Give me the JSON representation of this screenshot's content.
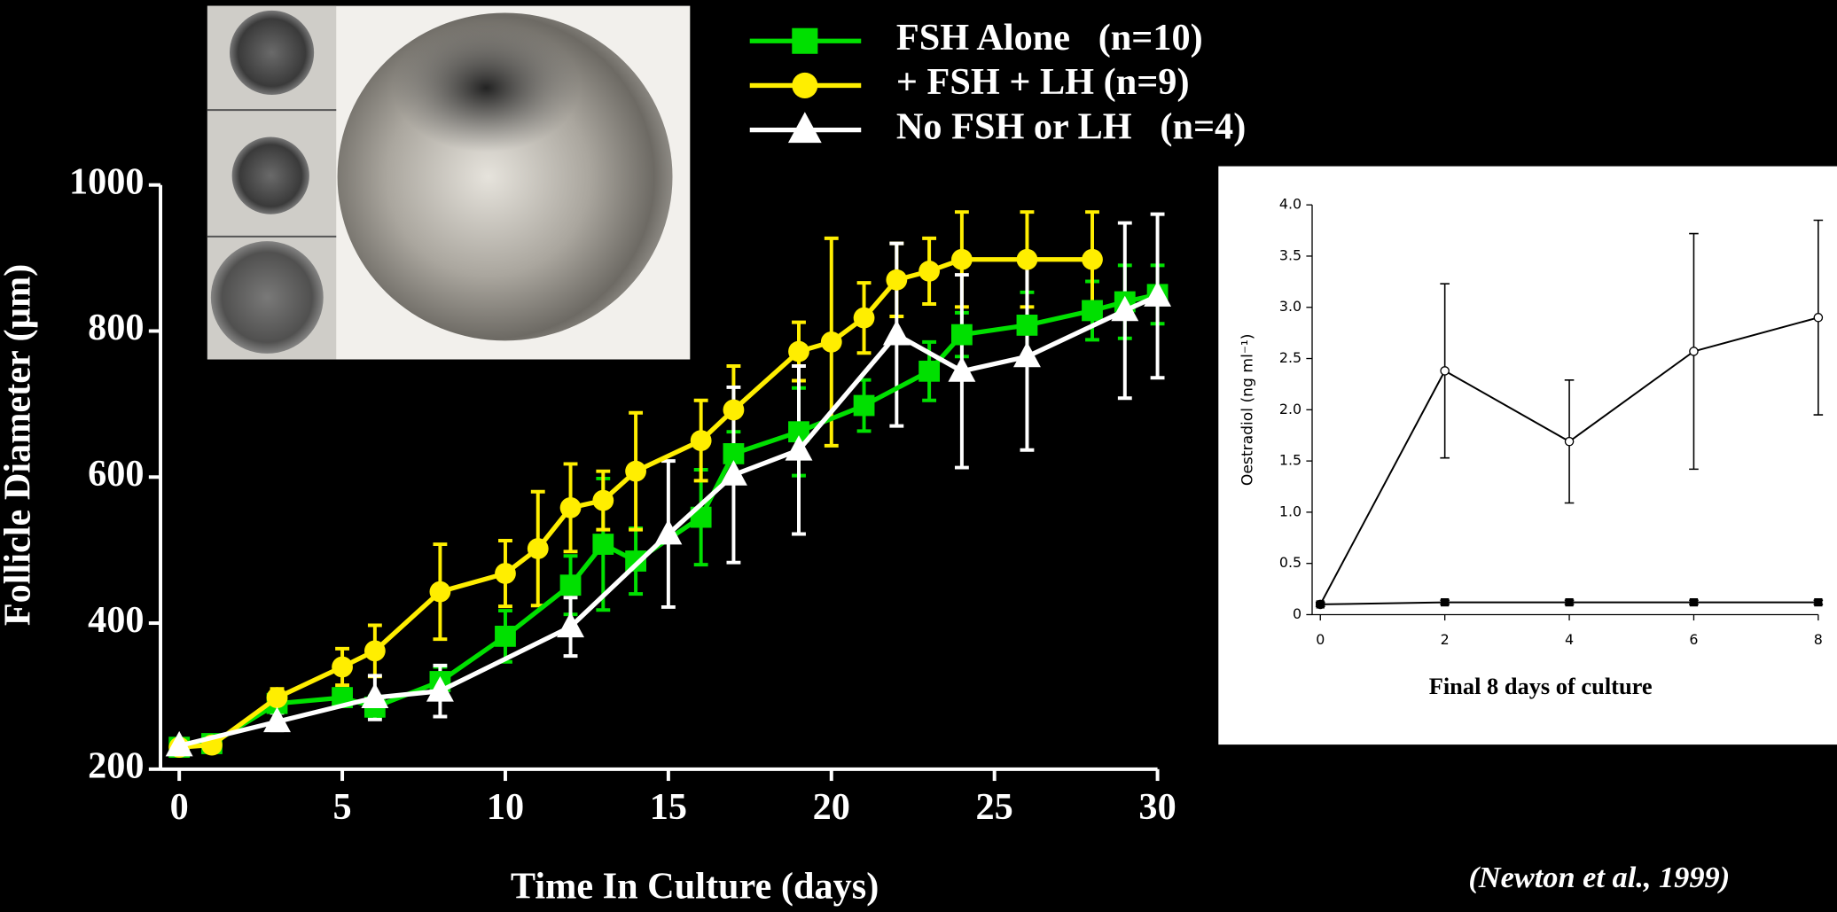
{
  "chart_data": [
    {
      "type": "line",
      "xlabel": "Time In Culture (days)",
      "ylabel": "Follicle Diameter (µm)",
      "xlim": [
        0,
        30
      ],
      "xticks": [
        0,
        5,
        10,
        15,
        20,
        25,
        30
      ],
      "ylim": [
        200,
        1000
      ],
      "yticks": [
        200,
        400,
        600,
        800,
        1000
      ],
      "legend": "top",
      "source": "(Newton et al., 1999)",
      "series": [
        {
          "name": "FSH Alone   (n=10)",
          "color": "#00e000",
          "marker": "square",
          "x": [
            0,
            1,
            3,
            5,
            6,
            8,
            10,
            12,
            13,
            14,
            16,
            17,
            19,
            21,
            23,
            24,
            26,
            28,
            29,
            30
          ],
          "values": [
            230,
            235,
            290,
            298,
            285,
            320,
            382,
            452,
            508,
            485,
            545,
            632,
            662,
            698,
            745,
            795,
            808,
            828,
            840,
            850
          ],
          "errors": [
            8,
            8,
            10,
            12,
            15,
            20,
            35,
            40,
            90,
            45,
            65,
            30,
            60,
            35,
            40,
            30,
            45,
            40,
            50,
            40
          ]
        },
        {
          "name": "+ FSH + LH (n=9)",
          "color": "#ffee00",
          "marker": "circle",
          "x": [
            0,
            1,
            3,
            5,
            6,
            8,
            10,
            11,
            12,
            13,
            14,
            16,
            17,
            19,
            20,
            21,
            22,
            23,
            24,
            26,
            28
          ],
          "values": [
            230,
            233,
            298,
            340,
            362,
            443,
            468,
            502,
            558,
            568,
            608,
            650,
            692,
            772,
            785,
            818,
            870,
            882,
            898,
            898,
            898
          ],
          "errors": [
            8,
            8,
            12,
            25,
            35,
            65,
            45,
            78,
            60,
            40,
            80,
            55,
            60,
            40,
            142,
            48,
            50,
            45,
            65,
            65,
            65
          ]
        },
        {
          "name": "No FSH or LH   (n=4)",
          "color": "#ffffff",
          "marker": "triangle",
          "x": [
            0,
            3,
            6,
            8,
            12,
            15,
            17,
            19,
            22,
            24,
            26,
            29,
            30
          ],
          "values": [
            232,
            265,
            298,
            307,
            395,
            522,
            603,
            637,
            795,
            745,
            765,
            828,
            848
          ],
          "errors": [
            8,
            12,
            30,
            35,
            40,
            100,
            120,
            115,
            125,
            132,
            128,
            120,
            112
          ]
        }
      ]
    },
    {
      "type": "line",
      "xlabel": "Final 8 days of culture",
      "ylabel": "Oestradiol (ng ml⁻¹)",
      "xlim": [
        0,
        8
      ],
      "xticks": [
        0,
        2,
        4,
        6,
        8
      ],
      "ylim": [
        0,
        4
      ],
      "yticks": [
        0,
        0.5,
        {
          "value": 1,
          "label": "1.0"
        },
        1.5,
        {
          "value": 2,
          "label": "2.0"
        },
        2.5,
        {
          "value": 3,
          "label": "3.0"
        },
        3.5,
        {
          "value": 4,
          "label": "4.0"
        }
      ],
      "series": [
        {
          "color": "#000000",
          "marker": "circle-open",
          "x": [
            0,
            2,
            4,
            6,
            8
          ],
          "values": [
            0.1,
            2.38,
            1.69,
            2.57,
            2.9
          ],
          "errors": [
            0.02,
            0.85,
            0.6,
            1.15,
            0.95
          ]
        },
        {
          "color": "#000000",
          "marker": "square",
          "x": [
            0,
            2,
            4,
            6,
            8
          ],
          "values": [
            0.1,
            0.12,
            0.12,
            0.12,
            0.12
          ],
          "errors": [
            0.02,
            0.02,
            0.02,
            0.02,
            0.02
          ]
        }
      ]
    }
  ]
}
